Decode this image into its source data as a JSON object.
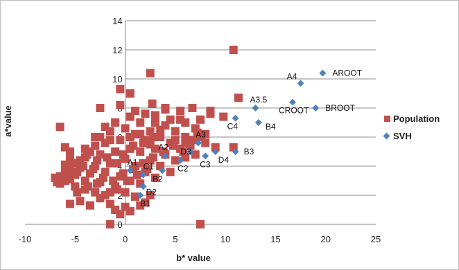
{
  "chart_data": {
    "type": "scatter",
    "xlabel": "b* value",
    "ylabel": "a*value",
    "xlim": [
      -10,
      25
    ],
    "ylim": [
      0,
      14
    ],
    "x_ticks": [
      -10,
      -5,
      0,
      5,
      10,
      15,
      20,
      25
    ],
    "y_ticks": [
      0,
      2,
      4,
      6,
      8,
      10,
      12,
      14
    ],
    "grid": "horizontal",
    "legend_position": "right",
    "series": [
      {
        "name": "Population",
        "marker": "square",
        "color": "#C0504D",
        "points": [
          [
            -6.5,
            2.8
          ],
          [
            -6.5,
            3.3
          ],
          [
            -6,
            3.6
          ],
          [
            -6,
            4.1
          ],
          [
            -5.5,
            4.6
          ],
          [
            -5.5,
            3.1
          ],
          [
            -5,
            2.6
          ],
          [
            -5,
            3.4
          ],
          [
            -4.5,
            3.9
          ],
          [
            -4.5,
            4.4
          ],
          [
            -4,
            2.4
          ],
          [
            -4,
            3.0
          ],
          [
            -4,
            4.6
          ],
          [
            -3.5,
            5.0
          ],
          [
            -3.5,
            3.5
          ],
          [
            -3,
            2.2
          ],
          [
            -3,
            4.0
          ],
          [
            -3,
            5.4
          ],
          [
            -2.5,
            2.9
          ],
          [
            -2.5,
            4.8
          ],
          [
            -2.5,
            6.0
          ],
          [
            -2,
            2.0
          ],
          [
            -2,
            3.6
          ],
          [
            -2,
            5.6
          ],
          [
            -1.5,
            4.2
          ],
          [
            -1.5,
            6.4
          ],
          [
            -1,
            2.6
          ],
          [
            -1,
            5.0
          ],
          [
            -1,
            7.0
          ],
          [
            -0.5,
            3.3
          ],
          [
            -0.5,
            5.8
          ],
          [
            0,
            2.2
          ],
          [
            0,
            4.5
          ],
          [
            0,
            6.6
          ],
          [
            0.5,
            3.0
          ],
          [
            0.5,
            5.2
          ],
          [
            0.5,
            7.4
          ],
          [
            1,
            4.0
          ],
          [
            1,
            6.2
          ],
          [
            1.5,
            2.8
          ],
          [
            1.5,
            5.0
          ],
          [
            1.5,
            7.0
          ],
          [
            2,
            3.6
          ],
          [
            2,
            5.8
          ],
          [
            2,
            7.6
          ],
          [
            2.5,
            4.4
          ],
          [
            2.5,
            6.4
          ],
          [
            3,
            3.2
          ],
          [
            3,
            5.2
          ],
          [
            3,
            7.0
          ],
          [
            3.5,
            4.0
          ],
          [
            3.5,
            6.0
          ],
          [
            4,
            4.8
          ],
          [
            4,
            6.8
          ],
          [
            4.5,
            3.6
          ],
          [
            4.5,
            5.6
          ],
          [
            5,
            4.4
          ],
          [
            5,
            6.4
          ],
          [
            5.5,
            5.2
          ],
          [
            5.5,
            7.2
          ],
          [
            6,
            4.6
          ],
          [
            6,
            6.0
          ],
          [
            6.5,
            5.4
          ],
          [
            7,
            6.6
          ],
          [
            7,
            4.8
          ],
          [
            7.5,
            7.2
          ],
          [
            8,
            5.6
          ],
          [
            8.5,
            7.8
          ],
          [
            -5.5,
            1.4
          ],
          [
            -4.5,
            1.6
          ],
          [
            -3.5,
            1.3
          ],
          [
            -2.5,
            1.8
          ],
          [
            -1.5,
            1.4
          ],
          [
            0,
            1.2
          ],
          [
            1,
            1.9
          ],
          [
            2,
            1.5
          ],
          [
            2.5,
            2.0
          ],
          [
            -6.5,
            6.7
          ],
          [
            -2.5,
            8.0
          ],
          [
            -0.5,
            9.3
          ],
          [
            0.5,
            9.0
          ],
          [
            -0.5,
            8.2
          ],
          [
            2.5,
            10.4
          ],
          [
            2.7,
            8.3
          ],
          [
            4,
            7.9
          ],
          [
            4,
            8.0
          ],
          [
            6.7,
            8.0
          ],
          [
            8.5,
            7.6
          ],
          [
            9.8,
            7.4
          ],
          [
            10.8,
            12.0
          ],
          [
            11.3,
            8.7
          ],
          [
            10.8,
            5.3
          ],
          [
            7.5,
            0.0
          ],
          [
            -1.5,
            0.0
          ],
          [
            -2,
            6.7
          ],
          [
            1,
            7.8
          ],
          [
            3,
            7.5
          ],
          [
            5.5,
            7.8
          ],
          [
            6,
            7.0
          ],
          [
            9,
            5.3
          ],
          [
            -6,
            5.3
          ],
          [
            -5.5,
            5.0
          ],
          [
            -6,
            3.0
          ],
          [
            -5.5,
            3.8
          ],
          [
            -7,
            3.2
          ],
          [
            -6.8,
            2.9
          ],
          [
            -4,
            5.2
          ],
          [
            -3,
            6.0
          ],
          [
            -1.5,
            5.8
          ],
          [
            0.5,
            6.0
          ],
          [
            1.5,
            6.2
          ],
          [
            2.5,
            5.5
          ],
          [
            3.5,
            6.5
          ],
          [
            4.5,
            7.2
          ],
          [
            5,
            5.8
          ],
          [
            6,
            5.6
          ],
          [
            7.2,
            6.3
          ],
          [
            7.6,
            6.0
          ],
          [
            8,
            6.2
          ],
          [
            -0.5,
            0.7
          ],
          [
            -1,
            1.0
          ],
          [
            0.5,
            0.9
          ],
          [
            1.5,
            1.3
          ],
          [
            -1.5,
            2.2
          ],
          [
            -0.8,
            2.4
          ],
          [
            -4.8,
            2.2
          ],
          [
            -3.7,
            2.6
          ],
          [
            -2.8,
            2.8
          ],
          [
            -5.2,
            4.2
          ],
          [
            -4.2,
            4.0
          ],
          [
            -3.2,
            3.8
          ],
          [
            -2.2,
            3.2
          ],
          [
            -1.2,
            3.0
          ],
          [
            -0.2,
            3.5
          ],
          [
            0.8,
            3.8
          ],
          [
            1.8,
            4.2
          ],
          [
            2.8,
            4.6
          ],
          [
            3.8,
            5.0
          ],
          [
            4.8,
            5.4
          ],
          [
            5.8,
            5.0
          ],
          [
            6.8,
            5.8
          ],
          [
            -0.2,
            4.8
          ],
          [
            0.8,
            5.4
          ],
          [
            1.8,
            5.6
          ],
          [
            2.8,
            6.0
          ],
          [
            -2.8,
            4.4
          ],
          [
            -1.8,
            4.6
          ],
          [
            -0.8,
            4.2
          ],
          [
            0.2,
            3.0
          ],
          [
            1.2,
            3.4
          ],
          [
            2.2,
            3.8
          ],
          [
            -3.8,
            4.8
          ],
          [
            -4.8,
            3.6
          ],
          [
            -5.8,
            3.4
          ]
        ]
      },
      {
        "name": "SVH",
        "marker": "diamond",
        "color": "#4F81BD",
        "points": [
          {
            "x": 0.5,
            "y": 3.7,
            "label": "A1"
          },
          {
            "x": 1.5,
            "y": 2.0,
            "label": "B1"
          },
          {
            "x": 1.8,
            "y": 3.4,
            "label": "C1"
          },
          {
            "x": 1.8,
            "y": 2.6,
            "label": "D2"
          },
          {
            "x": 4.0,
            "y": 4.7,
            "label": "A2"
          },
          {
            "x": 3.7,
            "y": 3.7,
            "label": "B2"
          },
          {
            "x": 5.5,
            "y": 4.4,
            "label": "C2"
          },
          {
            "x": 7.3,
            "y": 5.6,
            "label": "A3"
          },
          {
            "x": 6.5,
            "y": 5.0,
            "label": "D3"
          },
          {
            "x": 8.0,
            "y": 4.7,
            "label": "C3"
          },
          {
            "x": 9.0,
            "y": 5.0,
            "label": "D4"
          },
          {
            "x": 11.0,
            "y": 5.0,
            "label": "B3"
          },
          {
            "x": 11.0,
            "y": 7.3,
            "label": "C4"
          },
          {
            "x": 13.0,
            "y": 8.0,
            "label": "A3.5"
          },
          {
            "x": 13.3,
            "y": 7.0,
            "label": "B4"
          },
          {
            "x": 16.7,
            "y": 8.4,
            "label": "CROOT"
          },
          {
            "x": 17.5,
            "y": 9.7,
            "label": "A4"
          },
          {
            "x": 19.0,
            "y": 8.0,
            "label": "BROOT"
          },
          {
            "x": 19.7,
            "y": 10.4,
            "label": "AROOT"
          }
        ]
      }
    ]
  }
}
